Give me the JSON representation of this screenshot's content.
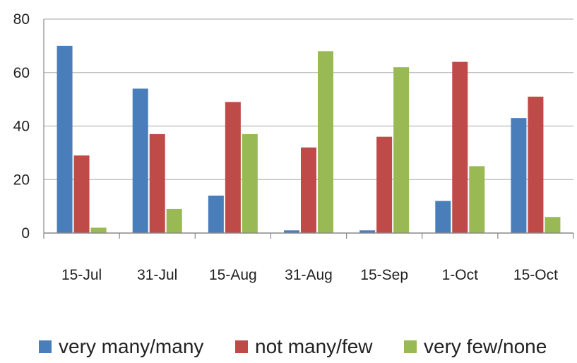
{
  "chart_data": {
    "type": "bar",
    "title": "",
    "xlabel": "",
    "ylabel": "",
    "categories": [
      "15-Jul",
      "31-Jul",
      "15-Aug",
      "31-Aug",
      "15-Sep",
      "1-Oct",
      "15-Oct"
    ],
    "series": [
      {
        "name": "very many/many",
        "color": "#4a7ebb",
        "values": [
          70,
          54,
          14,
          1,
          1,
          12,
          43
        ]
      },
      {
        "name": "not many/few",
        "color": "#be4b48",
        "values": [
          29,
          37,
          49,
          32,
          36,
          64,
          51
        ]
      },
      {
        "name": "very few/none",
        "color": "#98b954",
        "values": [
          2,
          9,
          37,
          68,
          62,
          25,
          6
        ]
      }
    ],
    "ylim": [
      0,
      80
    ],
    "yticks": [
      0,
      20,
      40,
      60,
      80
    ],
    "grid": true,
    "legend": "bottom"
  }
}
